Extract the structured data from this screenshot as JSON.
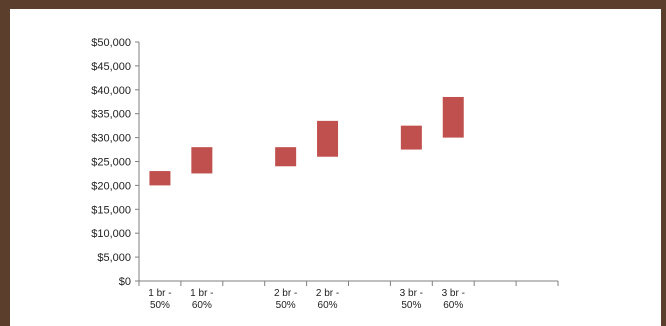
{
  "chart_data": {
    "type": "bar",
    "subtype": "floating-range",
    "categories": [
      [
        "1 br -",
        "50%"
      ],
      [
        "1 br -",
        "60%"
      ],
      [
        "",
        ""
      ],
      [
        "2 br -",
        "50%"
      ],
      [
        "2 br -",
        "60%"
      ],
      [
        "",
        ""
      ],
      [
        "3 br -",
        "50%"
      ],
      [
        "3 br -",
        "60%"
      ],
      [
        "",
        ""
      ],
      [
        "",
        ""
      ]
    ],
    "ranges": [
      [
        20000,
        23000
      ],
      [
        22500,
        28000
      ],
      null,
      [
        24000,
        28000
      ],
      [
        26000,
        33500
      ],
      null,
      [
        27500,
        32500
      ],
      [
        30000,
        38500
      ],
      null,
      null
    ],
    "ylim": [
      0,
      50000
    ],
    "yticks": [
      "$0",
      "$5,000",
      "$10,000",
      "$15,000",
      "$20,000",
      "$25,000",
      "$30,000",
      "$35,000",
      "$40,000",
      "$45,000",
      "$50,000"
    ],
    "ytick_values": [
      0,
      5000,
      10000,
      15000,
      20000,
      25000,
      30000,
      35000,
      40000,
      45000,
      50000
    ],
    "bar_color": "#c0504d",
    "grid": false,
    "legend": "none",
    "title": "",
    "xlabel": "",
    "ylabel": ""
  },
  "frame_color": "#5b3f2c"
}
